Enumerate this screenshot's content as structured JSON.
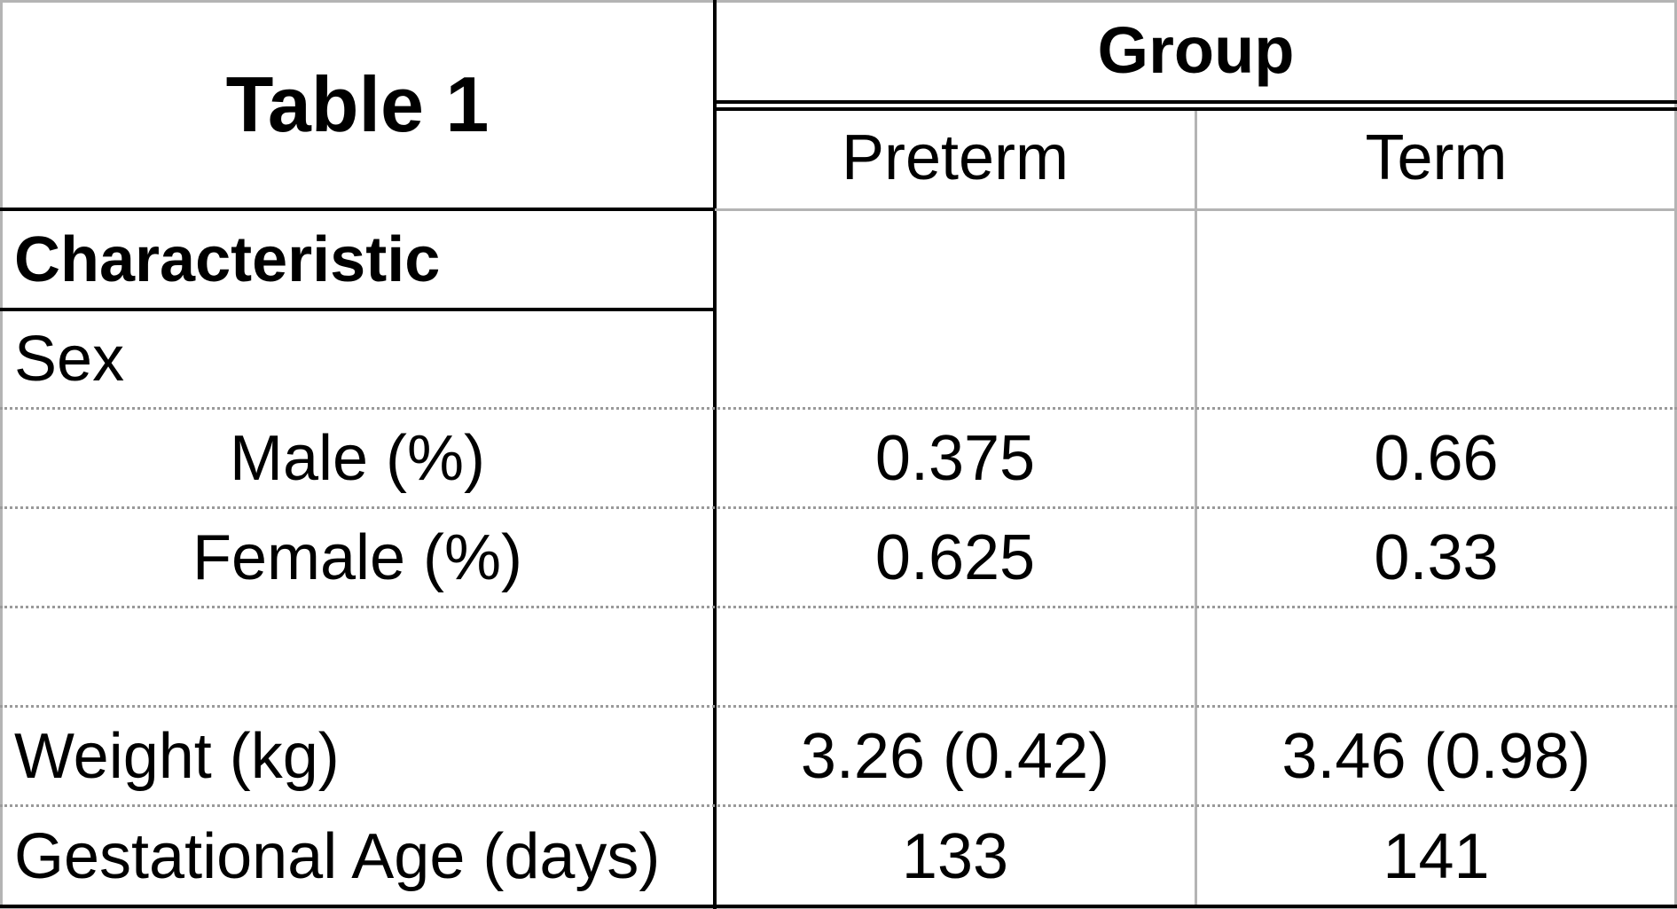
{
  "table": {
    "title": "Table 1",
    "group_header": "Group",
    "columns": [
      "Preterm",
      "Term"
    ],
    "characteristic_header": "Characteristic",
    "rows": [
      {
        "label": "Sex",
        "preterm": "",
        "term": ""
      },
      {
        "label": "Male (%)",
        "preterm": "0.375",
        "term": "0.66"
      },
      {
        "label": "Female (%)",
        "preterm": "0.625",
        "term": "0.33"
      },
      {
        "label": "",
        "preterm": "",
        "term": ""
      },
      {
        "label": "Weight (kg)",
        "preterm": "3.26 (0.42)",
        "term": "3.46 (0.98)"
      },
      {
        "label": "Gestational Age (days)",
        "preterm": "133",
        "term": "141"
      }
    ]
  },
  "colors": {
    "border_black": "#000000",
    "grid_gray": "#b4b4b4",
    "row_dotted": "#9a9a9a"
  }
}
